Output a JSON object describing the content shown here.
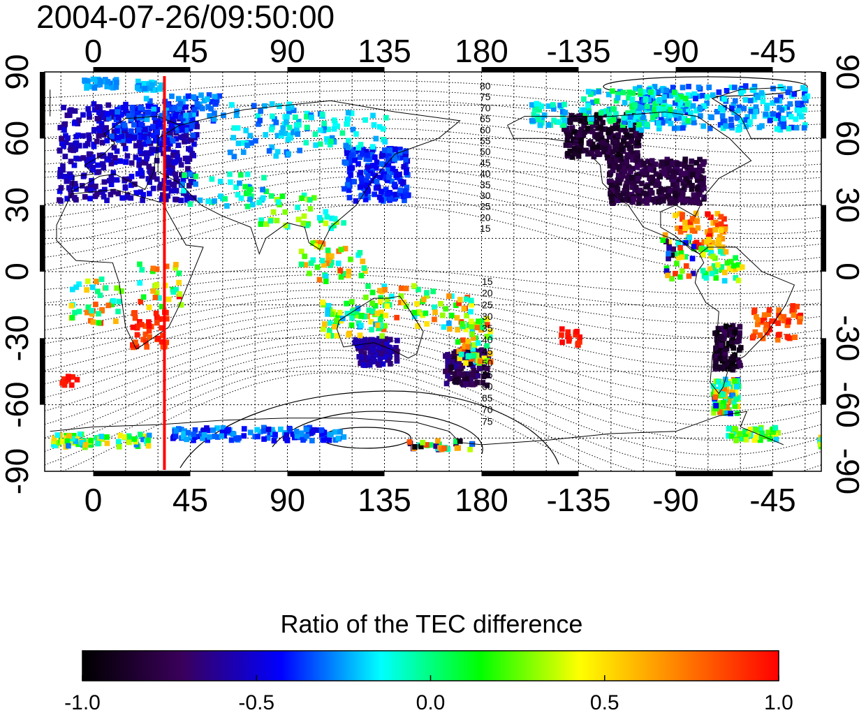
{
  "title": "2004-07-26/09:50:00",
  "colorbar": {
    "title": "Ratio of the TEC difference",
    "tick_labels": [
      "-1.0",
      "-0.5",
      "0.0",
      "0.5",
      "1.0"
    ],
    "range": [
      -1.0,
      1.0
    ],
    "colormap": [
      "#000000",
      "#3a005a",
      "#0000ff",
      "#00ffff",
      "#00ff00",
      "#ffff00",
      "#ff8000",
      "#ff0000"
    ]
  },
  "map": {
    "longitude_labels": [
      "0",
      "45",
      "90",
      "135",
      "180",
      "-135",
      "-90",
      "-45"
    ],
    "latitude_labels_left": [
      "90",
      "60",
      "30",
      "0",
      "-30",
      "-60",
      "-90"
    ],
    "latitude_labels_right": [
      "90",
      "60",
      "30",
      "0",
      "-30",
      "-60",
      "-90"
    ],
    "northern_contour_labels": [
      "80",
      "75",
      "70",
      "65",
      "60",
      "55",
      "50",
      "45",
      "40",
      "35",
      "30",
      "25",
      "20",
      "15"
    ],
    "southern_contour_labels": [
      "15",
      "20",
      "25",
      "30",
      "35",
      "40",
      "45",
      "50",
      "55",
      "60",
      "65",
      "70",
      "75"
    ],
    "red_line_longitude": 33,
    "red_line_color": "#ff0000"
  }
}
